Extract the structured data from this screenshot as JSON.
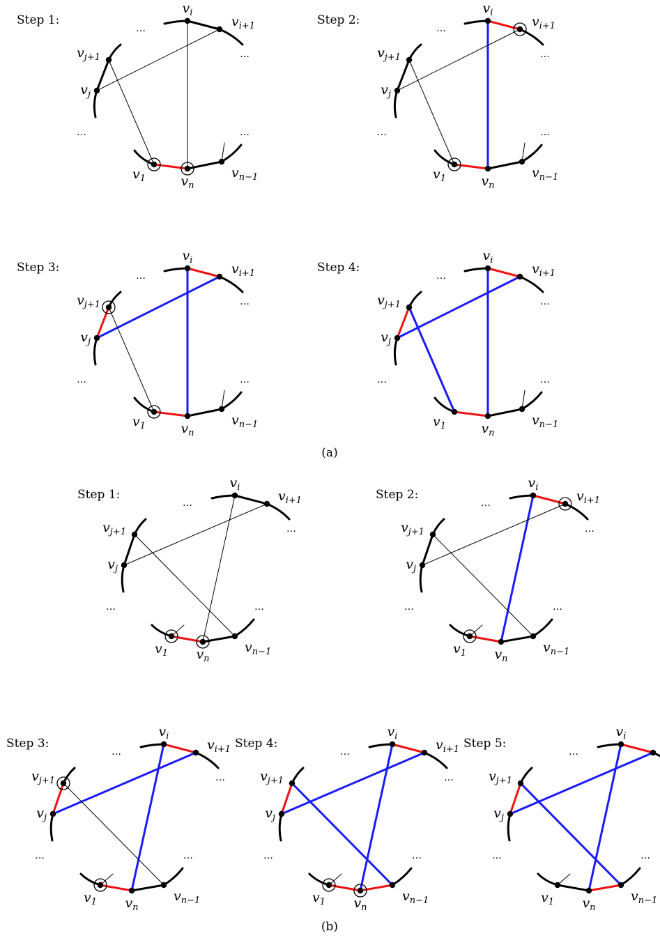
{
  "colors": {
    "ink": "#000000",
    "blue": "#1a1aff",
    "red": "#ee1111"
  },
  "ellipsis": "…",
  "vertices": {
    "vi": {
      "base": "v",
      "sub": "i"
    },
    "vi1": {
      "base": "v",
      "sub": "i+1"
    },
    "vj1": {
      "base": "v",
      "sub": "j+1"
    },
    "vj": {
      "base": "v",
      "sub": "j"
    },
    "v1": {
      "base": "v",
      "sub": "1"
    },
    "vn": {
      "base": "v",
      "sub": "n"
    },
    "vn1": {
      "base": "v",
      "sub": "n−1"
    }
  },
  "figure_a": {
    "caption": "(a)",
    "steps": [
      {
        "label": "Step 1:",
        "edges": {
          "top": "black",
          "left": "black",
          "bottom": "red",
          "chord_vi_vn": "thin",
          "chord_vi1_vj": "thin",
          "chord_vj1_v1": "thin"
        },
        "circled": [
          "v1",
          "vn"
        ]
      },
      {
        "label": "Step 2:",
        "edges": {
          "top": "red",
          "left": "black",
          "bottom": "red",
          "chord_vi_vn": "blue",
          "chord_vi1_vj": "thin",
          "chord_vj1_v1": "thin"
        },
        "circled": [
          "v1",
          "vi1"
        ]
      },
      {
        "label": "Step 3:",
        "edges": {
          "top": "red",
          "left": "red",
          "bottom": "red",
          "chord_vi_vn": "blue",
          "chord_vi1_vj": "blue",
          "chord_vj1_v1": "thin"
        },
        "circled": [
          "v1",
          "vj1"
        ]
      },
      {
        "label": "Step 4:",
        "edges": {
          "top": "red",
          "left": "red",
          "bottom": "red",
          "chord_vi_vn": "blue",
          "chord_vi1_vj": "blue",
          "chord_vj1_v1": "blue"
        },
        "circled": []
      }
    ]
  },
  "figure_b": {
    "caption": "(b)",
    "steps": [
      {
        "label": "Step 1:",
        "edges": {
          "top": "black",
          "left": "black",
          "bottom_left": "red",
          "bottom_right": "black",
          "chord_vi_vn": "thin",
          "chord_vi1_vj": "thin",
          "chord_vj1_vn1": "thin"
        },
        "circled": [
          "v1",
          "vn"
        ]
      },
      {
        "label": "Step 2:",
        "edges": {
          "top": "red",
          "left": "black",
          "bottom_left": "red",
          "bottom_right": "black",
          "chord_vi_vn": "blue",
          "chord_vi1_vj": "thin",
          "chord_vj1_vn1": "thin"
        },
        "circled": [
          "v1",
          "vi1"
        ]
      },
      {
        "label": "Step 3:",
        "edges": {
          "top": "red",
          "left": "red",
          "bottom_left": "red",
          "bottom_right": "black",
          "chord_vi_vn": "blue",
          "chord_vi1_vj": "blue",
          "chord_vj1_vn1": "thin"
        },
        "circled": [
          "v1",
          "vj1"
        ]
      },
      {
        "label": "Step 4:",
        "edges": {
          "top": "red",
          "left": "red",
          "bottom_left": "red",
          "bottom_right": "red",
          "chord_vi_vn": "blue",
          "chord_vi1_vj": "blue",
          "chord_vj1_vn1": "blue"
        },
        "circled": [
          "v1",
          "vn"
        ]
      },
      {
        "label": "Step 5:",
        "edges": {
          "top": "red",
          "left": "red",
          "bottom_left": "black",
          "bottom_right": "red",
          "chord_vi_vn": "blue",
          "chord_vi1_vj": "blue",
          "chord_vj1_vn1": "blue"
        },
        "circled": []
      }
    ]
  }
}
